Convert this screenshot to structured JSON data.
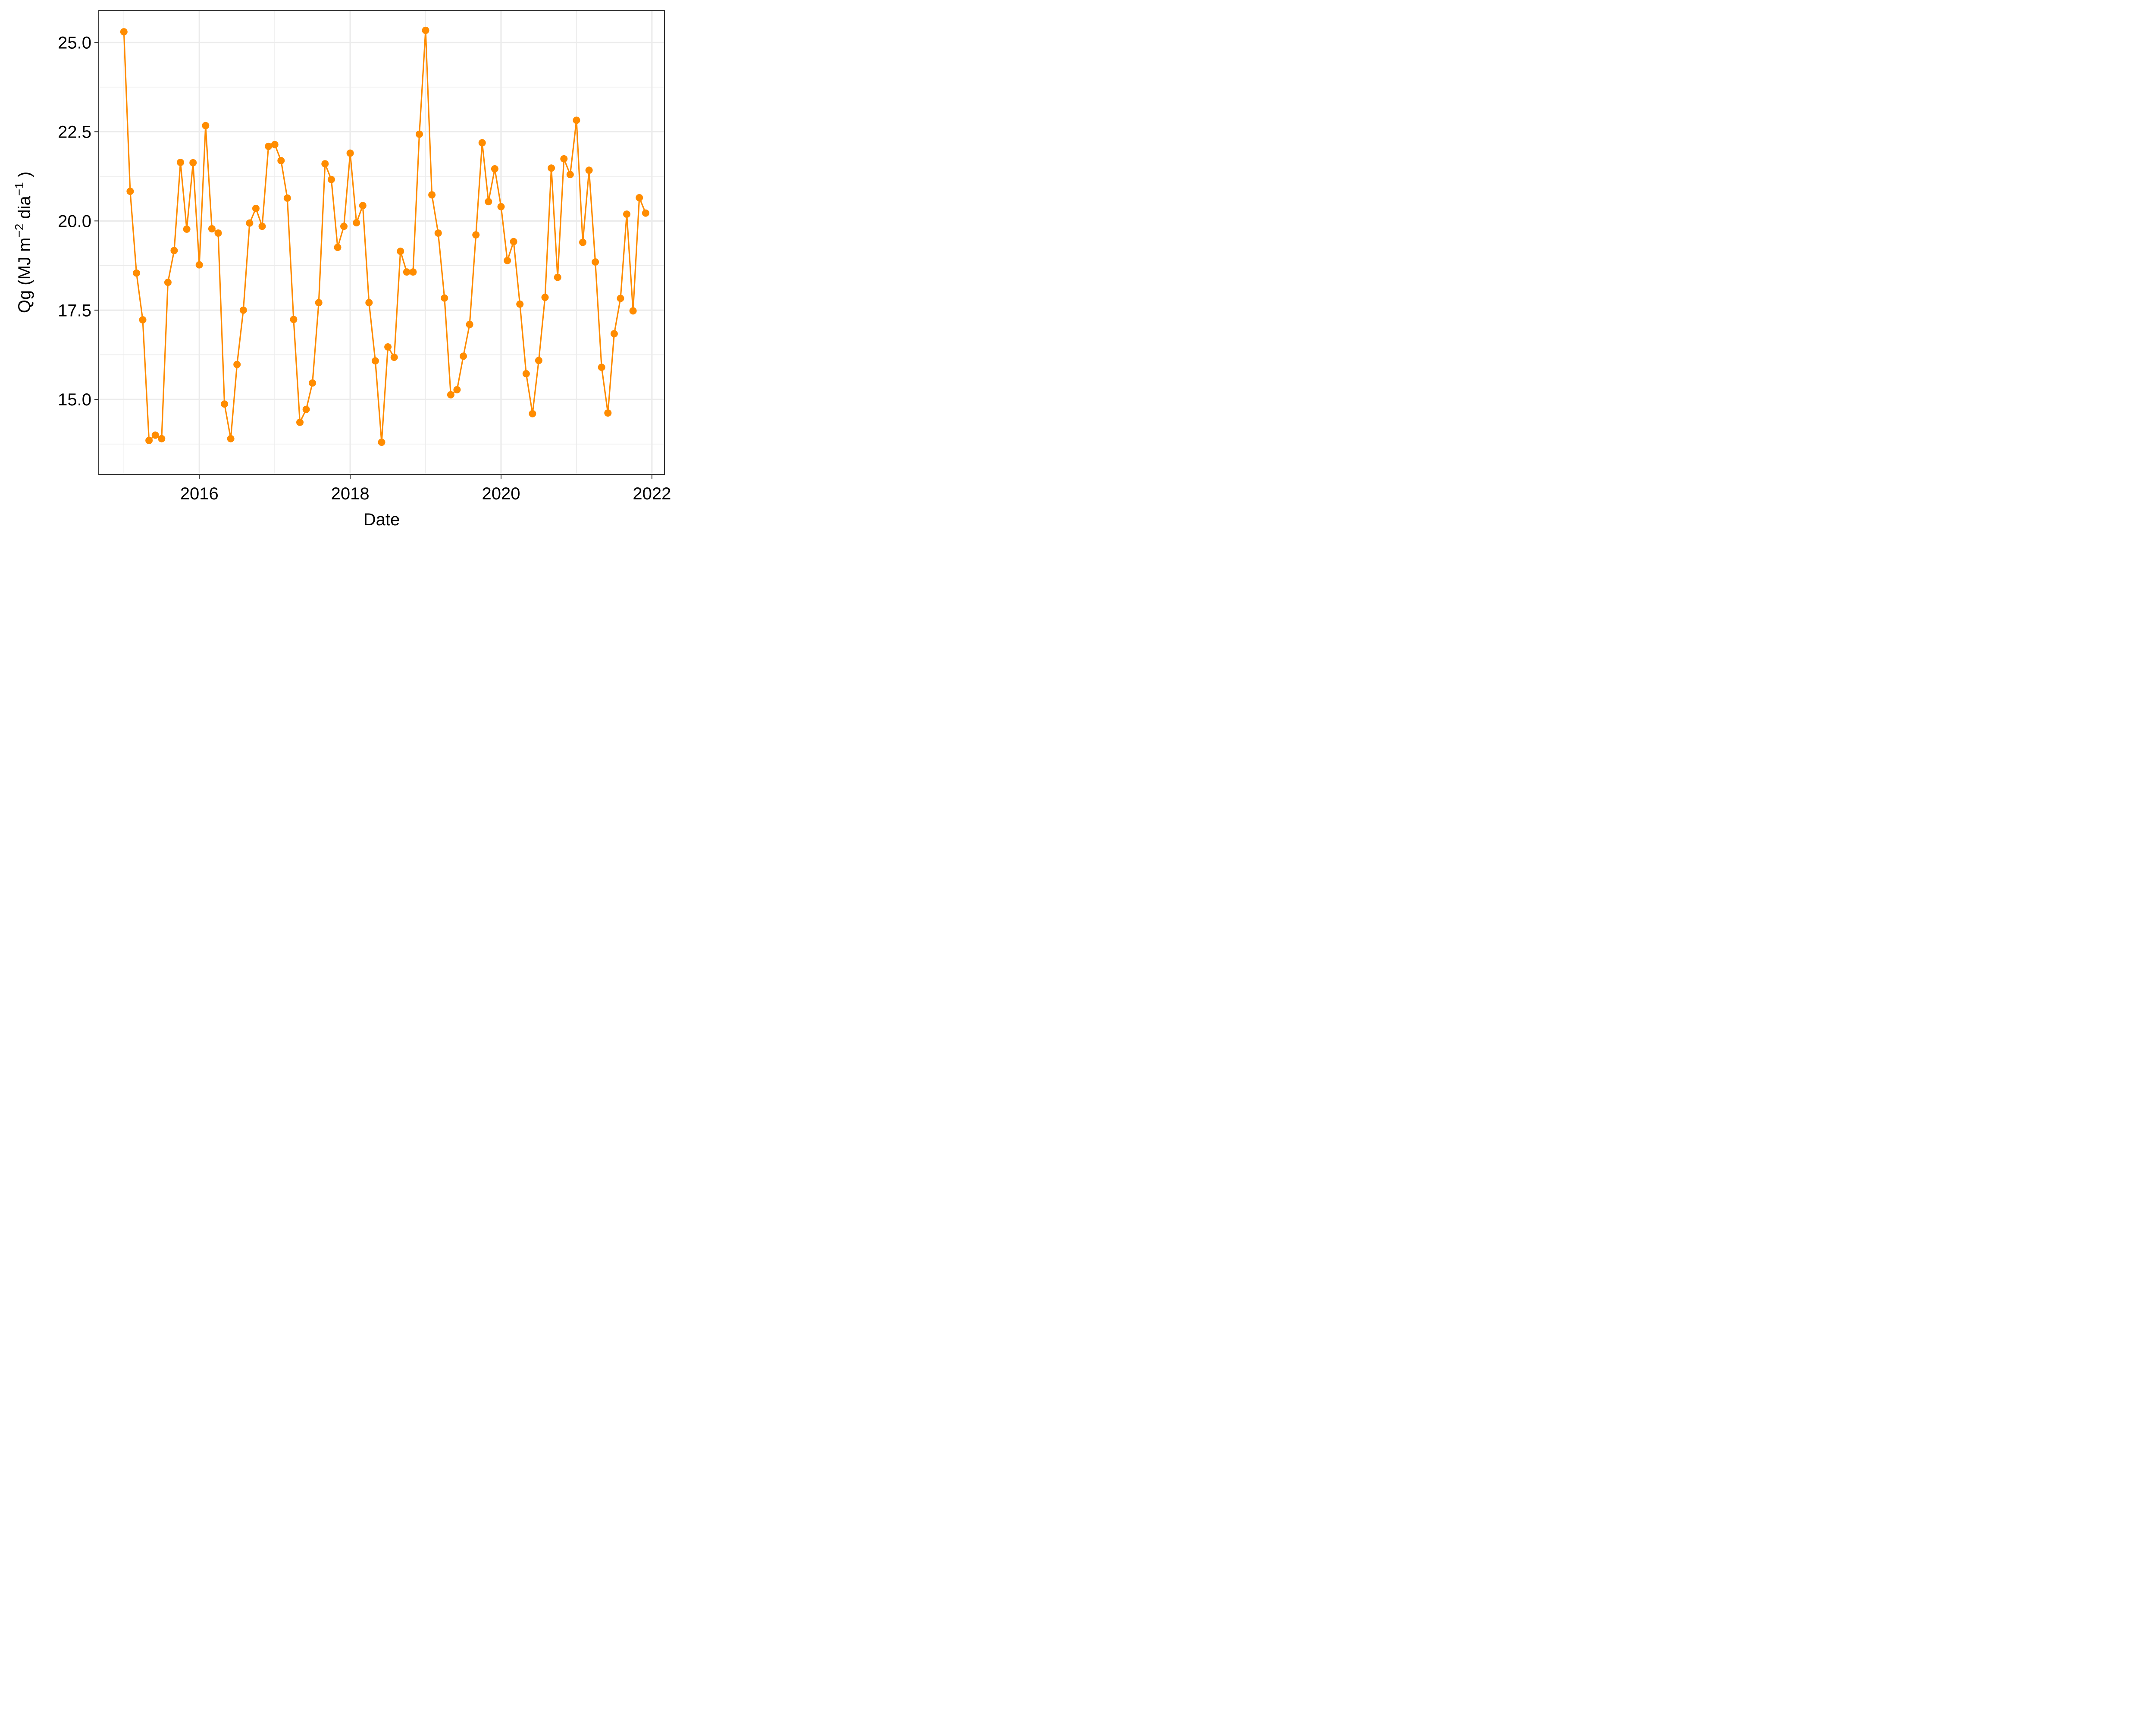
{
  "chart_data": {
    "type": "line",
    "xlabel": "Date",
    "ylabel_parts": {
      "prefix": "Qg (MJ m",
      "sup1": "−2",
      "mid": " dia",
      "sup2": "−1",
      "suffix": " )"
    },
    "x_ticks": [
      "2016",
      "2018",
      "2020",
      "2022"
    ],
    "y_ticks": [
      "15.0",
      "17.5",
      "20.0",
      "22.5",
      "25.0"
    ],
    "xlim": [
      "2014-09-01",
      "2022-03-01"
    ],
    "ylim": [
      12.9,
      25.9
    ],
    "grid": true,
    "color": "#ff8c00",
    "series": [
      {
        "x": [
          "2015-01",
          "2015-02",
          "2015-03",
          "2015-04",
          "2015-05",
          "2015-06",
          "2015-07",
          "2015-08",
          "2015-09",
          "2015-10",
          "2015-11",
          "2015-12",
          "2016-01",
          "2016-02",
          "2016-03",
          "2016-04",
          "2016-05",
          "2016-06",
          "2016-07",
          "2016-08",
          "2016-09",
          "2016-10",
          "2016-11",
          "2016-12",
          "2017-01",
          "2017-02",
          "2017-03",
          "2017-04",
          "2017-05",
          "2017-06",
          "2017-07",
          "2017-08",
          "2017-09",
          "2017-10",
          "2017-11",
          "2017-12",
          "2018-01",
          "2018-02",
          "2018-03",
          "2018-04",
          "2018-05",
          "2018-06",
          "2018-07",
          "2018-08",
          "2018-09",
          "2018-10",
          "2018-11",
          "2018-12",
          "2019-01",
          "2019-02",
          "2019-03",
          "2019-04",
          "2019-05",
          "2019-06",
          "2019-07",
          "2019-08",
          "2019-09",
          "2019-10",
          "2019-11",
          "2019-12",
          "2020-01",
          "2020-02",
          "2020-03",
          "2020-04",
          "2020-05",
          "2020-06",
          "2020-07",
          "2020-08",
          "2020-09",
          "2020-10",
          "2020-11",
          "2020-12",
          "2021-01",
          "2021-02",
          "2021-03",
          "2021-04",
          "2021-05",
          "2021-06",
          "2021-07",
          "2021-08",
          "2021-09",
          "2021-10",
          "2021-11",
          "2021-12"
        ],
        "y": [
          25.3,
          20.83,
          18.54,
          17.23,
          13.85,
          14.0,
          13.9,
          18.28,
          19.17,
          21.64,
          19.77,
          21.63,
          18.77,
          22.67,
          19.78,
          19.66,
          14.87,
          13.9,
          15.98,
          17.5,
          19.94,
          20.35,
          19.85,
          22.09,
          22.14,
          21.69,
          20.64,
          17.24,
          14.36,
          14.72,
          15.46,
          17.71,
          21.6,
          21.16,
          19.26,
          19.85,
          21.9,
          19.95,
          20.43,
          17.71,
          16.08,
          13.8,
          16.47,
          16.18,
          19.15,
          18.57,
          18.57,
          22.43,
          25.34,
          20.73,
          19.66,
          17.84,
          15.13,
          15.27,
          16.21,
          17.1,
          19.61,
          22.19,
          20.54,
          21.46,
          20.4,
          18.89,
          19.42,
          17.67,
          15.72,
          14.6,
          16.09,
          17.86,
          21.48,
          18.42,
          21.74,
          21.3,
          22.82,
          19.4,
          21.42,
          18.85,
          15.9,
          14.62,
          16.84,
          17.83,
          20.19,
          17.48,
          20.65,
          20.22
        ]
      }
    ]
  }
}
